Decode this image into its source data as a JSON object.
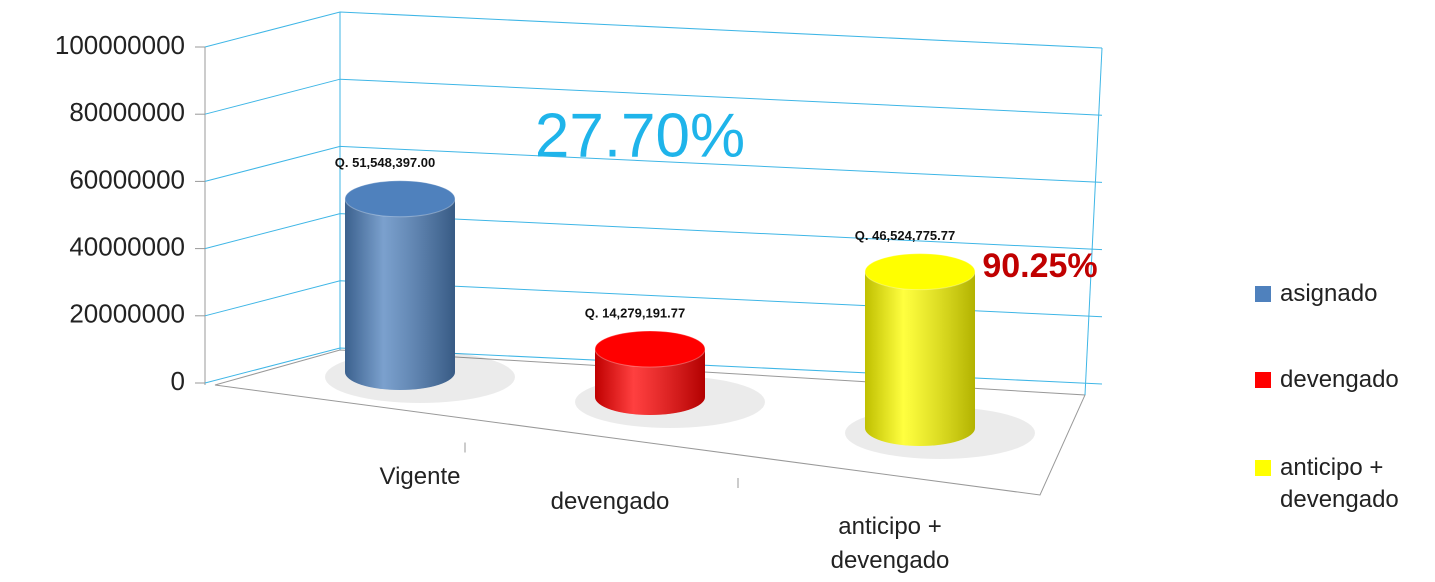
{
  "chart_data": {
    "type": "bar3d",
    "categories": [
      "Vigente",
      "devengado",
      "anticipo + devengado"
    ],
    "series": [
      {
        "name": "asignado",
        "color": "#4f81bd",
        "values": [
          51548397,
          null,
          null
        ],
        "value_labels": [
          "Q. 51,548,397.00",
          null,
          null
        ]
      },
      {
        "name": "devengado",
        "color": "#ff0000",
        "values": [
          null,
          14279191.77,
          null
        ],
        "value_labels": [
          null,
          "Q. 14,279,191.77",
          null
        ]
      },
      {
        "name": "anticipo + devengado",
        "color": "#ffff00",
        "values": [
          null,
          null,
          46524775.77
        ],
        "value_labels": [
          null,
          null,
          "Q. 46,524,775.77"
        ]
      }
    ],
    "annotations": [
      "27.70%",
      "90.25%"
    ],
    "ylim": [
      0,
      100000000
    ],
    "yticks": [
      0,
      20000000,
      40000000,
      60000000,
      80000000,
      100000000
    ],
    "grid": true,
    "legend": "right"
  }
}
